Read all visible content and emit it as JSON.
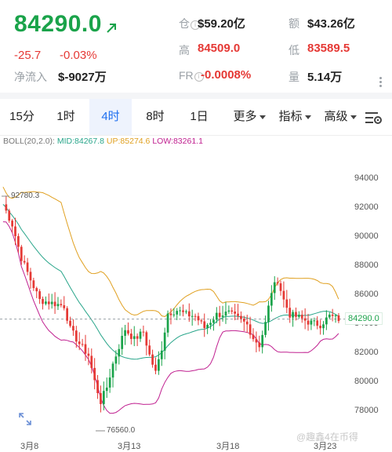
{
  "header": {
    "price": "84290.0",
    "change": "-25.7",
    "change_pct": "-0.03%",
    "net_inflow_label": "净流入",
    "net_inflow_value": "$-9027万",
    "position_label": "仓",
    "position_value": "$59.20亿",
    "amount_label": "额",
    "amount_value": "$43.26亿",
    "high_label": "高",
    "high_value": "84509.0",
    "low_label": "低",
    "low_value": "83589.5",
    "fr_label": "FR",
    "fr_value": "-0.0008%",
    "volume_label": "量",
    "volume_value": "5.14万",
    "info_glyph": "i"
  },
  "tabs": [
    {
      "label": "15分"
    },
    {
      "label": "1时"
    },
    {
      "label": "4时"
    },
    {
      "label": "8时"
    },
    {
      "label": "1日"
    },
    {
      "label": "更多"
    },
    {
      "label": "指标"
    },
    {
      "label": "高级"
    }
  ],
  "indicator": {
    "name": "BOLL(20,2.0):",
    "mid": "MID:84267.8",
    "up": "UP:85274.6",
    "low": "LOW:83261.1"
  },
  "colors": {
    "up_candle": "#1aa34a",
    "down_candle": "#e53935",
    "boll_mid": "#28a58a",
    "boll_up": "#e0a020",
    "boll_low": "#c02090",
    "active_tab": "#1e6ff0"
  },
  "chart_data": {
    "type": "candlestick",
    "y_ticks": [
      "94000",
      "92000",
      "90000",
      "88000",
      "86000",
      "84000",
      "82000",
      "80000",
      "78000"
    ],
    "x_ticks": [
      "3月8",
      "3月13",
      "3月18",
      "3月23"
    ],
    "current_price_label": "84290.0",
    "high_marker": "92780.3",
    "low_marker": "76560.0",
    "ylim": [
      76000,
      96000
    ],
    "current_price": 84290.0,
    "boll_mid": 84267.8,
    "boll_up": 85274.6,
    "boll_low": 83261.1,
    "grid": false
  },
  "watermark": "@趣鑫4在币得"
}
